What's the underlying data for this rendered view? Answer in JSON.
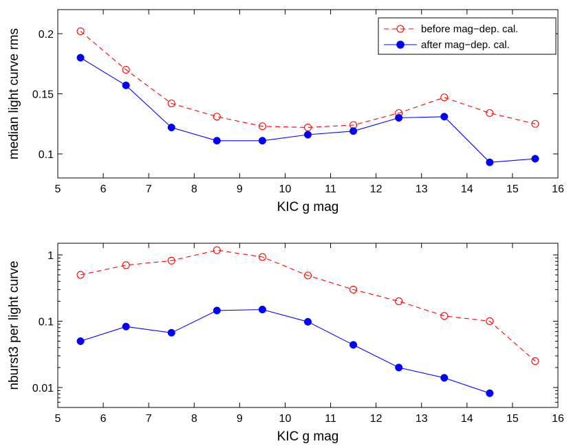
{
  "chart_data": [
    {
      "type": "line",
      "title": "",
      "xlabel": "KIC g mag",
      "ylabel": "median light curve rms",
      "xlim": [
        5,
        16
      ],
      "ylim": [
        0.08,
        0.22
      ],
      "yscale": "linear",
      "x_ticks": [
        "5",
        "6",
        "7",
        "8",
        "9",
        "10",
        "11",
        "12",
        "13",
        "14",
        "15",
        "16"
      ],
      "y_ticks": [
        "0.1",
        "0.15",
        "0.2"
      ],
      "legend_position": "top-right",
      "series": [
        {
          "name": "before mag−dep. cal.",
          "color": "#ff0000",
          "line_style": "dashed",
          "marker": "open-circle",
          "x": [
            5.5,
            6.5,
            7.5,
            8.5,
            9.5,
            10.5,
            11.5,
            12.5,
            13.5,
            14.5,
            15.5
          ],
          "values": [
            0.202,
            0.17,
            0.142,
            0.131,
            0.123,
            0.122,
            0.124,
            0.134,
            0.147,
            0.134,
            0.125
          ]
        },
        {
          "name": "after mag−dep. cal.",
          "color": "#0000ff",
          "line_style": "solid",
          "marker": "filled-circle",
          "x": [
            5.5,
            6.5,
            7.5,
            8.5,
            9.5,
            10.5,
            11.5,
            12.5,
            13.5,
            14.5,
            15.5
          ],
          "values": [
            0.18,
            0.157,
            0.122,
            0.111,
            0.111,
            0.116,
            0.119,
            0.13,
            0.131,
            0.093,
            0.096
          ]
        }
      ]
    },
    {
      "type": "line",
      "title": "",
      "xlabel": "KIC g mag",
      "ylabel": "nburst3 per light curve",
      "xlim": [
        5,
        16
      ],
      "ylim": [
        0.005,
        1.5
      ],
      "yscale": "log",
      "x_ticks": [
        "5",
        "6",
        "7",
        "8",
        "9",
        "10",
        "11",
        "12",
        "13",
        "14",
        "15",
        "16"
      ],
      "y_ticks": [
        "0.01",
        "0.1",
        "1"
      ],
      "series": [
        {
          "name": "before mag−dep. cal.",
          "color": "#ff0000",
          "line_style": "dashed",
          "marker": "open-circle",
          "x": [
            5.5,
            6.5,
            7.5,
            8.5,
            9.5,
            10.5,
            11.5,
            12.5,
            13.5,
            14.5,
            15.5
          ],
          "values": [
            0.5,
            0.7,
            0.82,
            1.18,
            0.93,
            0.49,
            0.3,
            0.2,
            0.12,
            0.1,
            0.025
          ]
        },
        {
          "name": "after mag−dep. cal.",
          "color": "#0000ff",
          "line_style": "solid",
          "marker": "filled-circle",
          "x": [
            5.5,
            6.5,
            7.5,
            8.5,
            9.5,
            10.5,
            11.5,
            12.5,
            13.5,
            14.5
          ],
          "values": [
            0.05,
            0.083,
            0.067,
            0.145,
            0.15,
            0.098,
            0.044,
            0.02,
            0.014,
            0.0082
          ]
        }
      ]
    }
  ]
}
